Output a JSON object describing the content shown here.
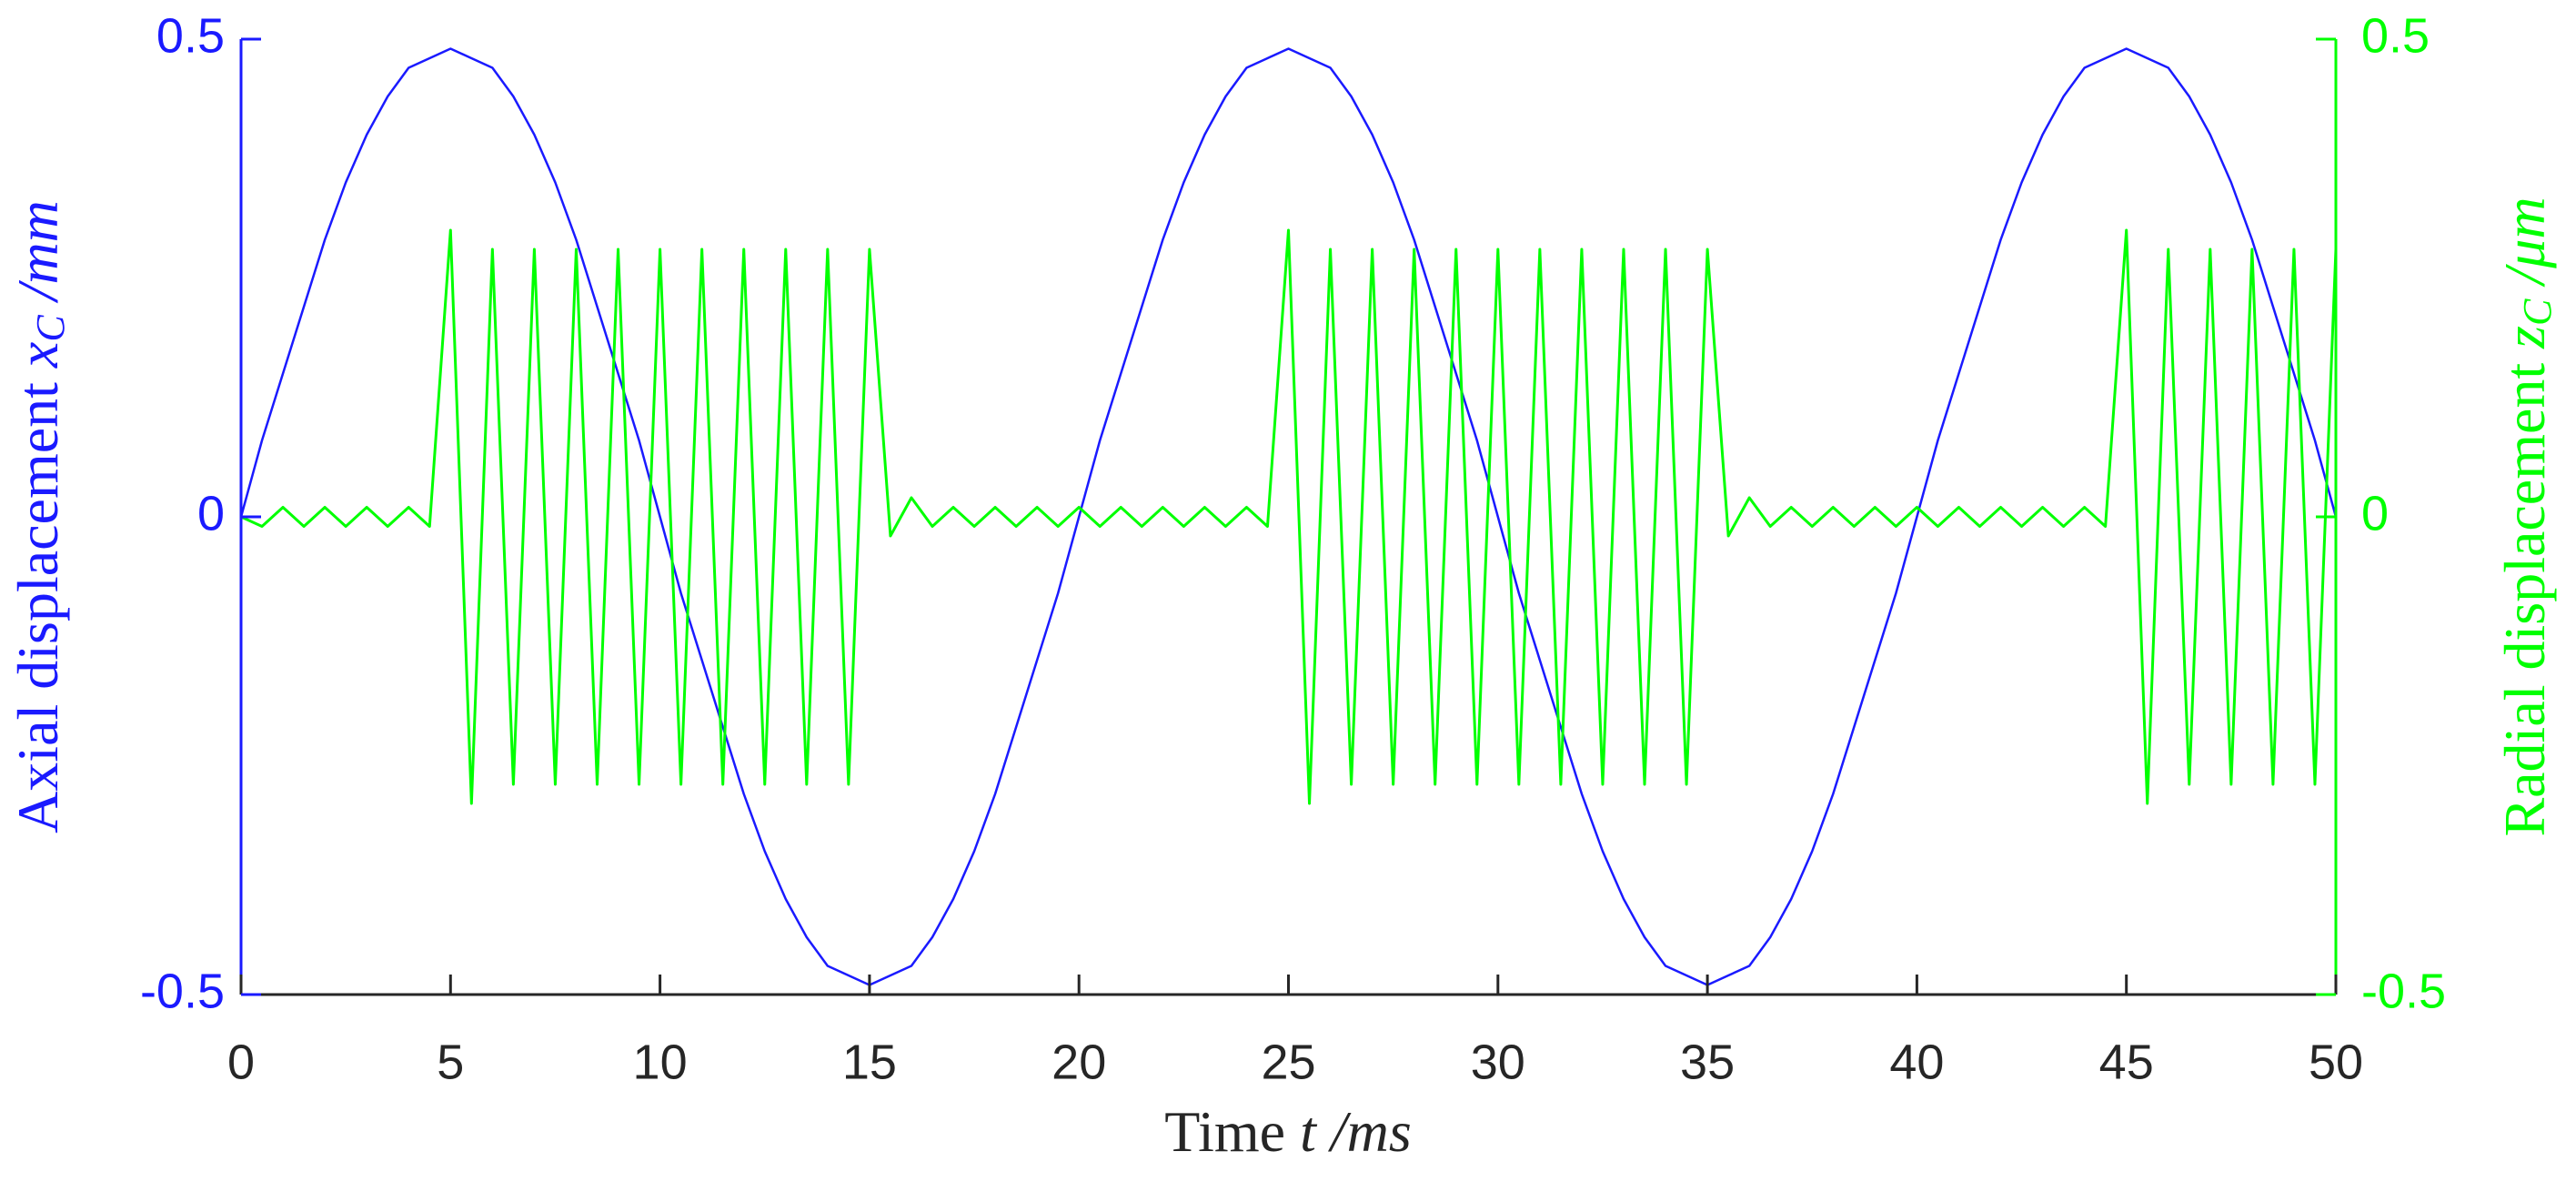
{
  "chart_data": {
    "type": "line",
    "x_label": {
      "text": "Time",
      "symbol": "t",
      "unit": "/ms"
    },
    "y_label": {
      "text": "Axial displacement",
      "symbol": "x",
      "subscript": "C",
      "unit": "/mm"
    },
    "y2_label": {
      "text": "Radial displacement",
      "symbol": "z",
      "subscript": "C",
      "unit": "/μm"
    },
    "x": [
      0,
      0.5,
      1,
      1.5,
      2,
      2.5,
      3,
      3.5,
      4,
      4.5,
      5,
      5.5,
      6,
      6.5,
      7,
      7.5,
      8,
      8.5,
      9,
      9.5,
      10,
      10.5,
      11,
      11.5,
      12,
      12.5,
      13,
      13.5,
      14,
      14.5,
      15,
      15.5,
      16,
      16.5,
      17,
      17.5,
      18,
      18.5,
      19,
      19.5,
      20,
      20.5,
      21,
      21.5,
      22,
      22.5,
      23,
      23.5,
      24,
      24.5,
      25,
      25.5,
      26,
      26.5,
      27,
      27.5,
      28,
      28.5,
      29,
      29.5,
      30,
      30.5,
      31,
      31.5,
      32,
      32.5,
      33,
      33.5,
      34,
      34.5,
      35,
      35.5,
      36,
      36.5,
      37,
      37.5,
      38,
      38.5,
      39,
      39.5,
      40,
      40.5,
      41,
      41.5,
      42,
      42.5,
      43,
      43.5,
      44,
      44.5,
      45,
      45.5,
      46,
      46.5,
      47,
      47.5,
      48,
      48.5,
      49,
      49.5,
      50
    ],
    "series": [
      {
        "name": "Axial displacement",
        "color": "#1a1aff",
        "axis": "y",
        "values": [
          0,
          0.08,
          0.15,
          0.22,
          0.29,
          0.35,
          0.4,
          0.44,
          0.47,
          0.48,
          0.49,
          0.48,
          0.47,
          0.44,
          0.4,
          0.35,
          0.29,
          0.22,
          0.15,
          0.08,
          0,
          -0.08,
          -0.15,
          -0.22,
          -0.29,
          -0.35,
          -0.4,
          -0.44,
          -0.47,
          -0.48,
          -0.49,
          -0.48,
          -0.47,
          -0.44,
          -0.4,
          -0.35,
          -0.29,
          -0.22,
          -0.15,
          -0.08,
          0,
          0.08,
          0.15,
          0.22,
          0.29,
          0.35,
          0.4,
          0.44,
          0.47,
          0.48,
          0.49,
          0.48,
          0.47,
          0.44,
          0.4,
          0.35,
          0.29,
          0.22,
          0.15,
          0.08,
          0,
          -0.08,
          -0.15,
          -0.22,
          -0.29,
          -0.35,
          -0.4,
          -0.44,
          -0.47,
          -0.48,
          -0.49,
          -0.48,
          -0.47,
          -0.44,
          -0.4,
          -0.35,
          -0.29,
          -0.22,
          -0.15,
          -0.08,
          0,
          0.08,
          0.15,
          0.22,
          0.29,
          0.35,
          0.4,
          0.44,
          0.47,
          0.48,
          0.49,
          0.48,
          0.47,
          0.44,
          0.4,
          0.35,
          0.29,
          0.22,
          0.15,
          0.08,
          0
        ]
      },
      {
        "name": "Radial displacement",
        "color": "#00ff00",
        "axis": "y2",
        "values": [
          0,
          -0.01,
          0.01,
          -0.01,
          0.01,
          -0.01,
          0.01,
          -0.01,
          0.01,
          -0.01,
          0.3,
          -0.3,
          0.28,
          -0.28,
          0.28,
          -0.28,
          0.28,
          -0.28,
          0.28,
          -0.28,
          0.28,
          -0.28,
          0.28,
          -0.28,
          0.28,
          -0.28,
          0.28,
          -0.28,
          0.28,
          -0.28,
          0.28,
          -0.02,
          0.02,
          -0.01,
          0.01,
          -0.01,
          0.01,
          -0.01,
          0.01,
          -0.01,
          0.01,
          -0.01,
          0.01,
          -0.01,
          0.01,
          -0.01,
          0.01,
          -0.01,
          0.01,
          -0.01,
          0.3,
          -0.3,
          0.28,
          -0.28,
          0.28,
          -0.28,
          0.28,
          -0.28,
          0.28,
          -0.28,
          0.28,
          -0.28,
          0.28,
          -0.28,
          0.28,
          -0.28,
          0.28,
          -0.28,
          0.28,
          -0.28,
          0.28,
          -0.02,
          0.02,
          -0.01,
          0.01,
          -0.01,
          0.01,
          -0.01,
          0.01,
          -0.01,
          0.01,
          -0.01,
          0.01,
          -0.01,
          0.01,
          -0.01,
          0.01,
          -0.01,
          0.01,
          -0.01,
          0.3,
          -0.3,
          0.28,
          -0.28,
          0.28,
          -0.28,
          0.28,
          -0.28,
          0.28,
          -0.28,
          0.28
        ]
      }
    ],
    "xlim": [
      0,
      50
    ],
    "xticks": [
      0,
      5,
      10,
      15,
      20,
      25,
      30,
      35,
      40,
      45,
      50
    ],
    "ylim": [
      -0.5,
      0.5
    ],
    "yticks": [
      -0.5,
      0,
      0.5
    ],
    "y2lim": [
      -0.5,
      0.5
    ],
    "y2ticks": [
      -0.5,
      0,
      0.5
    ],
    "grid": false
  }
}
